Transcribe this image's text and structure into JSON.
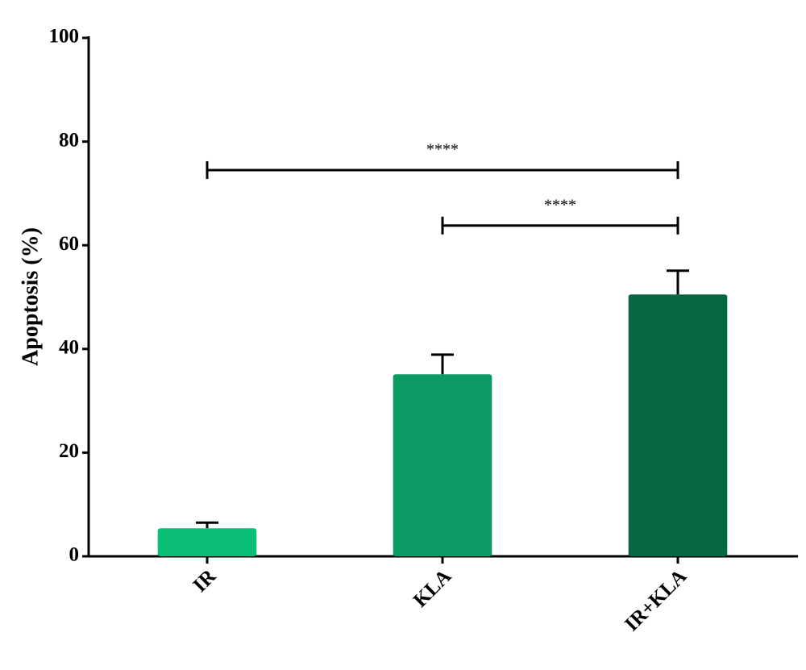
{
  "chart_data": {
    "type": "bar",
    "y_label": "Apoptosis (%)",
    "categories": [
      "IR",
      "KLA",
      "IR+KLA"
    ],
    "values": [
      5.4,
      35.1,
      50.5
    ],
    "errors": [
      1.1,
      3.8,
      4.6
    ],
    "colors": [
      "#0bbf78",
      "#0b9a63",
      "#066840"
    ],
    "ylim": [
      0,
      100
    ],
    "yticks": [
      0,
      20,
      40,
      60,
      80,
      100
    ],
    "comparisons": [
      {
        "from": 0,
        "to": 2,
        "y": 74.5,
        "label": "****"
      },
      {
        "from": 1,
        "to": 2,
        "y": 63.8,
        "label": "****"
      }
    ]
  }
}
